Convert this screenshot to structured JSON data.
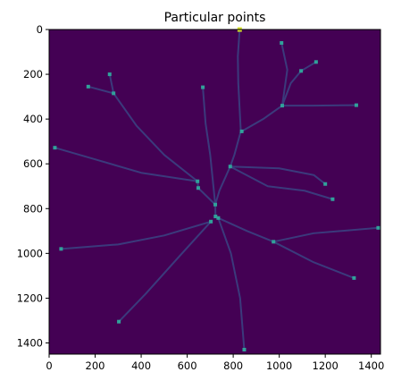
{
  "chart_data": {
    "type": "scatter",
    "title": "Particular points",
    "xlabel": "",
    "ylabel": "",
    "xlim": [
      0,
      1440
    ],
    "ylim": [
      1450,
      0
    ],
    "x_ticks": [
      0,
      200,
      400,
      600,
      800,
      1000,
      1200,
      1400
    ],
    "y_ticks": [
      0,
      200,
      400,
      600,
      800,
      1000,
      1200,
      1400
    ],
    "background_color": "#440154",
    "branch_color": "#3b3a7c",
    "point_color": "#31a19a",
    "highlight_color": "#d9e52a",
    "points": [
      {
        "x": 828,
        "y": 0
      },
      {
        "x": 1010,
        "y": 60
      },
      {
        "x": 1160,
        "y": 145
      },
      {
        "x": 1095,
        "y": 185
      },
      {
        "x": 263,
        "y": 200
      },
      {
        "x": 170,
        "y": 255
      },
      {
        "x": 668,
        "y": 258
      },
      {
        "x": 280,
        "y": 285
      },
      {
        "x": 1013,
        "y": 340
      },
      {
        "x": 1335,
        "y": 338
      },
      {
        "x": 837,
        "y": 455
      },
      {
        "x": 25,
        "y": 528
      },
      {
        "x": 787,
        "y": 612
      },
      {
        "x": 645,
        "y": 678
      },
      {
        "x": 1200,
        "y": 690
      },
      {
        "x": 648,
        "y": 708
      },
      {
        "x": 1232,
        "y": 758
      },
      {
        "x": 722,
        "y": 782
      },
      {
        "x": 723,
        "y": 835
      },
      {
        "x": 735,
        "y": 842
      },
      {
        "x": 703,
        "y": 858
      },
      {
        "x": 975,
        "y": 948
      },
      {
        "x": 1430,
        "y": 886
      },
      {
        "x": 52,
        "y": 980
      },
      {
        "x": 1325,
        "y": 1110
      },
      {
        "x": 303,
        "y": 1305
      },
      {
        "x": 848,
        "y": 1430
      }
    ],
    "branches": [
      [
        [
          828,
          0
        ],
        [
          820,
          120
        ],
        [
          822,
          240
        ],
        [
          833,
          455
        ],
        [
          805,
          560
        ],
        [
          787,
          612
        ],
        [
          740,
          720
        ],
        [
          722,
          782
        ]
      ],
      [
        [
          1010,
          60
        ],
        [
          1035,
          180
        ],
        [
          1013,
          340
        ],
        [
          930,
          400
        ],
        [
          837,
          455
        ]
      ],
      [
        [
          1160,
          145
        ],
        [
          1095,
          185
        ],
        [
          1050,
          240
        ],
        [
          1013,
          340
        ]
      ],
      [
        [
          1335,
          338
        ],
        [
          1150,
          340
        ],
        [
          1013,
          340
        ]
      ],
      [
        [
          263,
          200
        ],
        [
          280,
          285
        ],
        [
          380,
          430
        ],
        [
          500,
          560
        ],
        [
          645,
          678
        ],
        [
          648,
          708
        ],
        [
          722,
          782
        ]
      ],
      [
        [
          170,
          255
        ],
        [
          280,
          285
        ]
      ],
      [
        [
          668,
          258
        ],
        [
          680,
          420
        ],
        [
          700,
          560
        ],
        [
          722,
          782
        ]
      ],
      [
        [
          25,
          528
        ],
        [
          200,
          580
        ],
        [
          400,
          640
        ],
        [
          645,
          678
        ]
      ],
      [
        [
          1200,
          690
        ],
        [
          1150,
          650
        ],
        [
          1000,
          620
        ],
        [
          787,
          612
        ]
      ],
      [
        [
          1232,
          758
        ],
        [
          1110,
          720
        ],
        [
          950,
          700
        ],
        [
          787,
          612
        ]
      ],
      [
        [
          722,
          782
        ],
        [
          723,
          835
        ],
        [
          735,
          842
        ]
      ],
      [
        [
          735,
          842
        ],
        [
          860,
          900
        ],
        [
          975,
          948
        ],
        [
          1150,
          910
        ],
        [
          1430,
          886
        ]
      ],
      [
        [
          975,
          948
        ],
        [
          1150,
          1040
        ],
        [
          1325,
          1110
        ]
      ],
      [
        [
          735,
          842
        ],
        [
          790,
          1000
        ],
        [
          830,
          1200
        ],
        [
          848,
          1430
        ]
      ],
      [
        [
          703,
          858
        ],
        [
          500,
          920
        ],
        [
          300,
          960
        ],
        [
          52,
          980
        ]
      ],
      [
        [
          703,
          858
        ],
        [
          560,
          1020
        ],
        [
          420,
          1180
        ],
        [
          303,
          1305
        ]
      ]
    ]
  }
}
